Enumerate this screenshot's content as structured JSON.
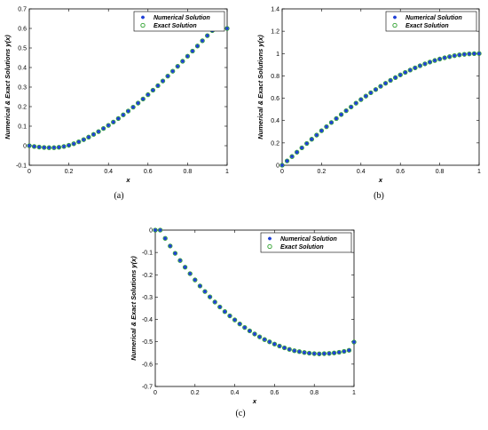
{
  "chart_data": [
    {
      "type": "scatter",
      "caption": "(a)",
      "xlabel": "x",
      "ylabel": "Numerical & Exact Solutions y(x)",
      "xlim": [
        0,
        1
      ],
      "ylim": [
        -0.1,
        0.7
      ],
      "xticks": [
        0,
        0.2,
        0.4,
        0.6,
        0.8,
        1
      ],
      "yticks": [
        -0.1,
        0,
        0.1,
        0.2,
        0.3,
        0.4,
        0.5,
        0.6,
        0.7
      ],
      "xtick_labels": [
        "0",
        "0.2",
        "0.4",
        "0.6",
        "0.8",
        "1"
      ],
      "ytick_labels": [
        "-0.1",
        "0",
        "0.1",
        "0.2",
        "0.3",
        "0.4",
        "0.5",
        "0.6",
        "0.7"
      ],
      "legend_position": "top-right",
      "x": [
        0,
        0.025,
        0.05,
        0.075,
        0.1,
        0.125,
        0.15,
        0.175,
        0.2,
        0.225,
        0.25,
        0.275,
        0.3,
        0.325,
        0.35,
        0.375,
        0.4,
        0.425,
        0.45,
        0.475,
        0.5,
        0.525,
        0.55,
        0.575,
        0.6,
        0.625,
        0.65,
        0.675,
        0.7,
        0.725,
        0.75,
        0.775,
        0.8,
        0.825,
        0.85,
        0.875,
        0.9,
        0.925,
        0.95,
        0.975,
        1
      ],
      "series": [
        {
          "name": "Numerical Solution",
          "marker": "star",
          "color": "#1f3fd6",
          "values": [
            0,
            -0.004,
            -0.007,
            -0.009,
            -0.01,
            -0.01,
            -0.008,
            -0.004,
            0.002,
            0.01,
            0.02,
            0.031,
            0.044,
            0.058,
            0.072,
            0.088,
            0.104,
            0.121,
            0.139,
            0.158,
            0.177,
            0.197,
            0.218,
            0.239,
            0.261,
            0.284,
            0.307,
            0.331,
            0.356,
            0.381,
            0.406,
            0.432,
            0.458,
            0.484,
            0.51,
            0.537,
            0.563,
            0.589,
            0.614,
            0.639,
            0.6
          ]
        },
        {
          "name": "Exact Solution",
          "marker": "circle",
          "color": "#2ca02c",
          "values": [
            0,
            -0.004,
            -0.007,
            -0.009,
            -0.01,
            -0.01,
            -0.008,
            -0.004,
            0.002,
            0.01,
            0.02,
            0.031,
            0.044,
            0.058,
            0.072,
            0.088,
            0.104,
            0.121,
            0.139,
            0.158,
            0.177,
            0.197,
            0.218,
            0.239,
            0.261,
            0.284,
            0.307,
            0.331,
            0.356,
            0.381,
            0.406,
            0.432,
            0.458,
            0.484,
            0.51,
            0.537,
            0.563,
            0.589,
            0.614,
            0.639,
            0.6
          ]
        }
      ]
    },
    {
      "type": "scatter",
      "caption": "(b)",
      "xlabel": "x",
      "ylabel": "Numerical & Exact Solutions y(x)",
      "xlim": [
        0,
        1
      ],
      "ylim": [
        0,
        1.4
      ],
      "xticks": [
        0,
        0.2,
        0.4,
        0.6,
        0.8,
        1
      ],
      "yticks": [
        0,
        0.2,
        0.4,
        0.6,
        0.8,
        1,
        1.2,
        1.4
      ],
      "xtick_labels": [
        "0",
        "0.2",
        "0.4",
        "0.6",
        "0.8",
        "1"
      ],
      "ytick_labels": [
        "0",
        "0.2",
        "0.4",
        "0.6",
        "0.8",
        "1",
        "1.2",
        "1.4"
      ],
      "legend_position": "top-right",
      "x": [
        0,
        0.025,
        0.05,
        0.075,
        0.1,
        0.125,
        0.15,
        0.175,
        0.2,
        0.225,
        0.25,
        0.275,
        0.3,
        0.325,
        0.35,
        0.375,
        0.4,
        0.425,
        0.45,
        0.475,
        0.5,
        0.525,
        0.55,
        0.575,
        0.6,
        0.625,
        0.65,
        0.675,
        0.7,
        0.725,
        0.75,
        0.775,
        0.8,
        0.825,
        0.85,
        0.875,
        0.9,
        0.925,
        0.95,
        0.975,
        1
      ],
      "series": [
        {
          "name": "Numerical Solution",
          "marker": "star",
          "color": "#1f3fd6",
          "values": [
            0,
            0.039,
            0.078,
            0.117,
            0.156,
            0.195,
            0.233,
            0.27,
            0.309,
            0.345,
            0.383,
            0.418,
            0.454,
            0.488,
            0.522,
            0.556,
            0.588,
            0.619,
            0.649,
            0.678,
            0.707,
            0.734,
            0.76,
            0.785,
            0.809,
            0.831,
            0.852,
            0.872,
            0.891,
            0.908,
            0.924,
            0.938,
            0.951,
            0.962,
            0.972,
            0.981,
            0.988,
            0.993,
            0.997,
            0.999,
            1
          ]
        },
        {
          "name": "Exact Solution",
          "marker": "circle",
          "color": "#2ca02c",
          "values": [
            0,
            0.039,
            0.078,
            0.117,
            0.156,
            0.195,
            0.233,
            0.27,
            0.309,
            0.345,
            0.383,
            0.418,
            0.454,
            0.488,
            0.522,
            0.556,
            0.588,
            0.619,
            0.649,
            0.678,
            0.707,
            0.734,
            0.76,
            0.785,
            0.809,
            0.831,
            0.852,
            0.872,
            0.891,
            0.908,
            0.924,
            0.938,
            0.951,
            0.962,
            0.972,
            0.981,
            0.988,
            0.993,
            0.997,
            0.999,
            1
          ]
        }
      ]
    },
    {
      "type": "scatter",
      "caption": "(c)",
      "xlabel": "x",
      "ylabel": "Numerical & Exact Solutions y(x)",
      "xlim": [
        0,
        1
      ],
      "ylim": [
        -0.7,
        0
      ],
      "xticks": [
        0,
        0.2,
        0.4,
        0.6,
        0.8,
        1
      ],
      "yticks": [
        -0.7,
        -0.6,
        -0.5,
        -0.4,
        -0.3,
        -0.2,
        -0.1,
        0
      ],
      "xtick_labels": [
        "0",
        "0.2",
        "0.4",
        "0.6",
        "0.8",
        "1"
      ],
      "ytick_labels": [
        "-0.7",
        "-0.6",
        "-0.5",
        "-0.4",
        "-0.3",
        "-0.2",
        "-0.1",
        "0"
      ],
      "legend_position": "top-right",
      "x": [
        0,
        0.025,
        0.05,
        0.075,
        0.1,
        0.125,
        0.15,
        0.175,
        0.2,
        0.225,
        0.25,
        0.275,
        0.3,
        0.325,
        0.35,
        0.375,
        0.4,
        0.425,
        0.45,
        0.475,
        0.5,
        0.525,
        0.55,
        0.575,
        0.6,
        0.625,
        0.65,
        0.675,
        0.7,
        0.725,
        0.75,
        0.775,
        0.8,
        0.825,
        0.85,
        0.875,
        0.9,
        0.925,
        0.95,
        0.975,
        1
      ],
      "series": [
        {
          "name": "Numerical Solution",
          "marker": "star",
          "color": "#1f3fd6",
          "values": [
            0,
            0,
            -0.037,
            -0.071,
            -0.104,
            -0.136,
            -0.166,
            -0.195,
            -0.223,
            -0.25,
            -0.275,
            -0.299,
            -0.322,
            -0.344,
            -0.365,
            -0.384,
            -0.402,
            -0.42,
            -0.436,
            -0.451,
            -0.465,
            -0.478,
            -0.49,
            -0.5,
            -0.51,
            -0.519,
            -0.527,
            -0.534,
            -0.54,
            -0.544,
            -0.548,
            -0.551,
            -0.553,
            -0.554,
            -0.553,
            -0.552,
            -0.55,
            -0.547,
            -0.543,
            -0.538,
            -0.501
          ]
        },
        {
          "name": "Exact Solution",
          "marker": "circle",
          "color": "#2ca02c",
          "values": [
            0,
            0,
            -0.037,
            -0.071,
            -0.104,
            -0.136,
            -0.166,
            -0.195,
            -0.223,
            -0.25,
            -0.275,
            -0.299,
            -0.322,
            -0.344,
            -0.365,
            -0.384,
            -0.402,
            -0.42,
            -0.436,
            -0.451,
            -0.465,
            -0.478,
            -0.49,
            -0.5,
            -0.51,
            -0.519,
            -0.527,
            -0.534,
            -0.54,
            -0.544,
            -0.548,
            -0.551,
            -0.553,
            -0.554,
            -0.553,
            -0.552,
            -0.55,
            -0.547,
            -0.543,
            -0.538,
            -0.501
          ]
        }
      ]
    }
  ]
}
